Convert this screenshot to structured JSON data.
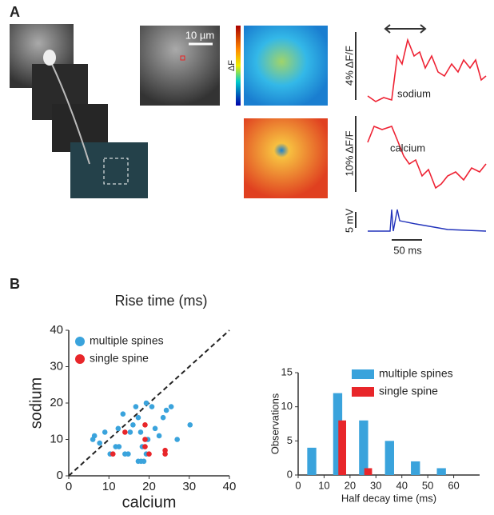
{
  "panel_labels": [
    "A",
    "B"
  ],
  "panel_a": {
    "scale_bar": "10 µm",
    "colorbar_label": "ΔF",
    "sodium_scale": "4% ΔF/F",
    "sodium_label": "sodium",
    "calcium_scale": "10% ΔF/F",
    "calcium_label": "calcium",
    "voltage_scale": "5 mV",
    "time_scale": "50 ms"
  },
  "chart_data": [
    {
      "type": "scatter",
      "title": "Rise time (ms)",
      "x_label": "calcium",
      "y_label": "sodium",
      "xlim": [
        0,
        40
      ],
      "ylim": [
        0,
        40
      ],
      "xticks": [
        0,
        10,
        20,
        30,
        40
      ],
      "yticks": [
        0,
        10,
        20,
        30,
        40
      ],
      "legend": "upper left",
      "series": [
        {
          "name": "multiple spines",
          "color": "#3aa3dc",
          "x": [
            6,
            6.4,
            7.7,
            9,
            10.3,
            11.7,
            12.3,
            13.5,
            14,
            14.8,
            15.3,
            16,
            16.7,
            17.3,
            17.9,
            18.3,
            17.3,
            18,
            18.7,
            19.3,
            19.7,
            20.7,
            21.5,
            22.5,
            23.5,
            24.3,
            25.5,
            27,
            30.2,
            12.5,
            19.3
          ],
          "values": [
            10,
            11,
            9,
            12,
            6,
            8,
            13,
            17,
            6,
            6,
            12,
            14,
            19,
            16,
            12,
            8,
            4,
            4,
            4,
            20,
            10,
            19,
            13,
            11,
            16,
            18,
            19,
            10,
            14,
            8,
            6
          ]
        },
        {
          "name": "single spine",
          "color": "#e8262a",
          "x": [
            11,
            14,
            19,
            19,
            19,
            20,
            24,
            24
          ],
          "values": [
            6,
            12,
            14,
            10,
            8,
            6,
            6,
            7
          ]
        }
      ]
    },
    {
      "type": "bar",
      "x_label": "Half decay time (ms)",
      "y_label": "Observations",
      "x": [
        5,
        15,
        25,
        35,
        45,
        55
      ],
      "xlim": [
        0,
        70
      ],
      "ylim": [
        0,
        15
      ],
      "xticks": [
        0,
        10,
        20,
        30,
        40,
        50,
        60
      ],
      "yticks": [
        0,
        5,
        10,
        15
      ],
      "legend": "upper right",
      "series": [
        {
          "name": "multiple spines",
          "color": "#3aa3dc",
          "values": [
            4,
            12,
            8,
            5,
            2,
            1
          ]
        },
        {
          "name": "single spine",
          "color": "#e8262a",
          "values": [
            0,
            8,
            1,
            0,
            0,
            0
          ]
        }
      ]
    }
  ]
}
